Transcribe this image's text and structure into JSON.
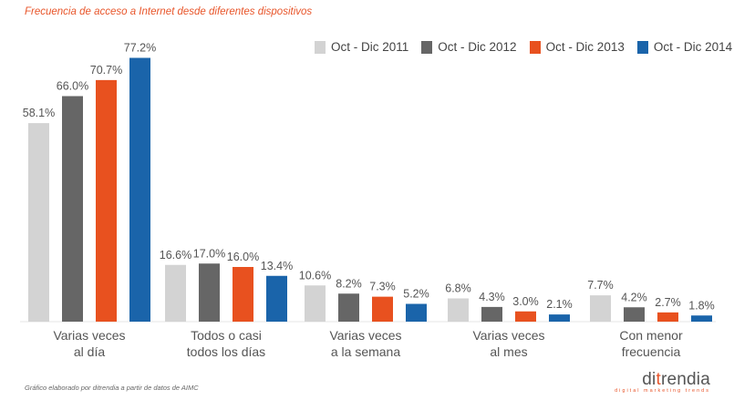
{
  "title": "Frecuencia de acceso a Internet desde diferentes dispositivos",
  "footer_note": "Gráfico elaborado por ditrendia a partir de datos de AIMC",
  "brand": {
    "prefix": "di",
    "accent_letter": "t",
    "rest": "rendia",
    "tagline": "digital marketing trends"
  },
  "colors": {
    "s2011": "#d3d3d3",
    "s2012": "#666666",
    "s2013": "#e8511f",
    "s2014": "#1a64aa",
    "text": "#555555"
  },
  "chart_data": {
    "type": "bar",
    "title": "Frecuencia de acceso a Internet desde diferentes dispositivos",
    "categories": [
      "Varias veces\nal día",
      "Todos o casi\ntodos los días",
      "Varias veces\na la semana",
      "Varias veces\nal mes",
      "Con menor\nfrecuencia"
    ],
    "series": [
      {
        "name": "Oct - Dic 2011",
        "values": [
          58.1,
          16.6,
          10.6,
          6.8,
          7.7
        ],
        "labels": [
          "58.1%",
          "16.6%",
          "10.6%",
          "6.8%",
          "7.7%"
        ]
      },
      {
        "name": "Oct - Dic 2012",
        "values": [
          66.0,
          17.0,
          8.2,
          4.3,
          4.2
        ],
        "labels": [
          "66.0%",
          "17.0%",
          "8.2%",
          "4.3%",
          "4.2%"
        ]
      },
      {
        "name": "Oct - Dic 2013",
        "values": [
          70.7,
          16.0,
          7.3,
          3.0,
          2.7
        ],
        "labels": [
          "70.7%",
          "16.0%",
          "7.3%",
          "3.0%",
          "2.7%"
        ]
      },
      {
        "name": "Oct - Dic 2014",
        "values": [
          77.2,
          13.4,
          5.2,
          2.1,
          1.8
        ],
        "labels": [
          "77.2%",
          "13.4%",
          "5.2%",
          "2.1%",
          "1.8%"
        ]
      }
    ],
    "xlabel": "",
    "ylabel": "",
    "ylim": [
      0,
      80
    ],
    "grid": false,
    "legend": "top-right"
  }
}
